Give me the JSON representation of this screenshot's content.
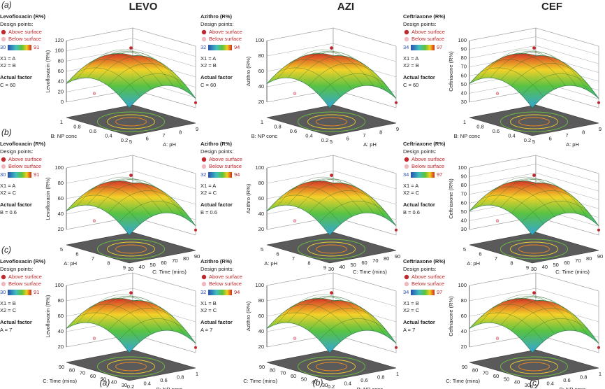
{
  "headers": [
    "LEVO",
    "AZI",
    "CEF"
  ],
  "row_labels": [
    "(a)",
    "(b)",
    "(c)"
  ],
  "bottom_labels": [
    "(a)",
    "(b)",
    "(c)"
  ],
  "panels": [
    {
      "title": "Levofloxacin (R%)",
      "design": "Design points:",
      "above": "Above surface",
      "below": "Below surface",
      "cmin": 30,
      "cmax": 91,
      "x1": "X1 = A",
      "x2": "X2 = B",
      "actual": "Actual factor",
      "factor": "C = 60",
      "zlabel": "Levofloxacin (R%)",
      "zticks": [
        0,
        20,
        40,
        60,
        80,
        100,
        120
      ],
      "axis1": "B: NP conc",
      "ticks1": [
        1,
        0.8,
        0.6,
        0.4,
        0.2
      ],
      "axis2": "A: pH",
      "ticks2": [
        5,
        6,
        7,
        8,
        9
      ]
    },
    {
      "title": "Azithro (R%)",
      "design": "Design points:",
      "above": "Above surface",
      "below": "Below surface",
      "cmin": 32,
      "cmax": 94,
      "x1": "X1 = A",
      "x2": "X2 = B",
      "actual": "Actual factor",
      "factor": "C = 60",
      "zlabel": "Azithro (R%)",
      "zticks": [
        20,
        40,
        60,
        80,
        100
      ],
      "axis1": "B: NP conc",
      "ticks1": [
        1,
        0.8,
        0.6,
        0.4,
        0.2
      ],
      "axis2": "A: pH",
      "ticks2": [
        5,
        6,
        7,
        8,
        9
      ]
    },
    {
      "title": "Ceftriaxone (R%)",
      "design": "Design points:",
      "above": "Above surface",
      "below": "Below surface",
      "cmin": 34,
      "cmax": 97,
      "x1": "X1 = A",
      "x2": "X2 = B",
      "actual": "Actual factor",
      "factor": "C = 60",
      "zlabel": "Ceftriaxone (R%)",
      "zticks": [
        30,
        40,
        50,
        60,
        70,
        80,
        90,
        100
      ],
      "axis1": "B: NP conc",
      "ticks1": [
        1,
        0.8,
        0.6,
        0.4,
        0.2
      ],
      "axis2": "A: pH",
      "ticks2": [
        5,
        6,
        7,
        8,
        9
      ]
    },
    {
      "title": "Levofloxacin (R%)",
      "design": "Design points:",
      "above": "Above surface",
      "below": "Below surface",
      "cmin": 30,
      "cmax": 91,
      "x1": "X1 = A",
      "x2": "X2 = C",
      "actual": "Actual factor",
      "factor": "B = 0.6",
      "zlabel": "Levofloxacin (R%)",
      "zticks": [
        20,
        40,
        60,
        80,
        100
      ],
      "axis1": "A: pH",
      "ticks1": [
        5,
        6,
        7,
        8,
        9
      ],
      "axis2": "C: Time (mins)",
      "ticks2": [
        30,
        40,
        50,
        60,
        70,
        80,
        90
      ]
    },
    {
      "title": "Azithro (R%)",
      "design": "Design points:",
      "above": "Above surface",
      "below": "Below surface",
      "cmin": 32,
      "cmax": 94,
      "x1": "X1 = A",
      "x2": "X2 = C",
      "actual": "Actual factor",
      "factor": "B = 0.6",
      "zlabel": "Azithro (R%)",
      "zticks": [
        20,
        40,
        60,
        80,
        100
      ],
      "axis1": "A: pH",
      "ticks1": [
        5,
        6,
        7,
        8,
        9
      ],
      "axis2": "C: Time (mins)",
      "ticks2": [
        30,
        40,
        50,
        60,
        70,
        80,
        90
      ]
    },
    {
      "title": "Ceftriaxone (R%)",
      "design": "Design points:",
      "above": "Above surface",
      "below": "Below surface",
      "cmin": 34,
      "cmax": 97,
      "x1": "X1 = A",
      "x2": "X2 = C",
      "actual": "Actual factor",
      "factor": "B = 0.6",
      "zlabel": "Ceftriaxone (R%)",
      "zticks": [
        30,
        40,
        50,
        60,
        70,
        80,
        90,
        100
      ],
      "axis1": "A: pH",
      "ticks1": [
        5,
        6,
        7,
        8,
        9
      ],
      "axis2": "C: Time (mins)",
      "ticks2": [
        30,
        40,
        50,
        60,
        70,
        80,
        90
      ]
    },
    {
      "title": "Levofloxacin (R%)",
      "design": "Design points:",
      "above": "Above surface",
      "below": "Below surface",
      "cmin": 30,
      "cmax": 91,
      "x1": "X1 = B",
      "x2": "X2 = C",
      "actual": "Actual factor",
      "factor": "A = 7",
      "zlabel": "Levofloxacin (R%)",
      "zticks": [
        20,
        40,
        60,
        80,
        100
      ],
      "axis1": "C: Time (mins)",
      "ticks1": [
        90,
        80,
        70,
        60,
        50,
        40,
        30
      ],
      "axis2": "B: NP conc",
      "ticks2": [
        0.2,
        0.4,
        0.6,
        0.8,
        1
      ]
    },
    {
      "title": "Azithro (R%)",
      "design": "Design points:",
      "above": "Above surface",
      "below": "Below surface",
      "cmin": 32,
      "cmax": 94,
      "x1": "X1 = B",
      "x2": "X2 = C",
      "actual": "Actual factor",
      "factor": "A = 7",
      "zlabel": "Azithro (R%)",
      "zticks": [
        20,
        40,
        60,
        80,
        100
      ],
      "axis1": "C: Time (mins)",
      "ticks1": [
        90,
        80,
        70,
        60,
        50,
        40,
        30
      ],
      "axis2": "B: NP conc",
      "ticks2": [
        0.2,
        0.4,
        0.6,
        0.8,
        1
      ]
    },
    {
      "title": "Ceftriaxone (R%)",
      "design": "Design points:",
      "above": "Above surface",
      "below": "Below surface",
      "cmin": 34,
      "cmax": 97,
      "x1": "X1 = B",
      "x2": "X2 = C",
      "actual": "Actual factor",
      "factor": "A = 7",
      "zlabel": "Ceftriaxone (R%)",
      "zticks": [
        20,
        40,
        60,
        80,
        100
      ],
      "axis1": "C: Time (mins)",
      "ticks1": [
        90,
        80,
        70,
        60,
        50,
        40,
        30
      ],
      "axis2": "B: NP conc",
      "ticks2": [
        0.2,
        0.4,
        0.6,
        0.8,
        1
      ]
    }
  ]
}
